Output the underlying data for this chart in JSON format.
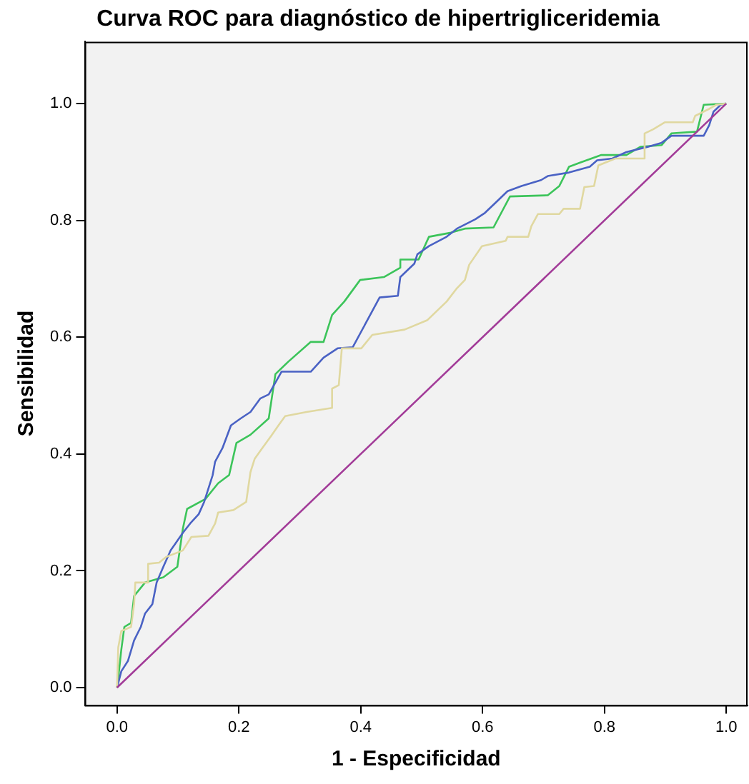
{
  "chart_data": {
    "type": "line",
    "title": "Curva ROC para diagnóstico de hipertrigliceridemia",
    "xlabel": "1 - Especificidad",
    "ylabel": "Sensibilidad",
    "xlim": [
      -0.053,
      1.035
    ],
    "ylim": [
      -0.03,
      1.106
    ],
    "xticks": [
      {
        "value": 0,
        "label": "0.0"
      },
      {
        "value": 0.2,
        "label": "0.2"
      },
      {
        "value": 0.4,
        "label": "0.4"
      },
      {
        "value": 0.6,
        "label": "0.6"
      },
      {
        "value": 0.8,
        "label": "0.8"
      },
      {
        "value": 1,
        "label": "1.0"
      }
    ],
    "yticks": [
      {
        "value": 0,
        "label": "0.0"
      },
      {
        "value": 0.2,
        "label": "0.2"
      },
      {
        "value": 0.4,
        "label": "0.4"
      },
      {
        "value": 0.6,
        "label": "0.6"
      },
      {
        "value": 0.8,
        "label": "0.8"
      },
      {
        "value": 1,
        "label": "1.0"
      }
    ],
    "grid": false,
    "legend": false,
    "marker": "none",
    "line_style": "solid",
    "series": [
      {
        "color": "#a23b98",
        "x": [
          0,
          1
        ],
        "values": [
          0,
          1
        ]
      },
      {
        "color": "#e0d8a0",
        "x": [
          0,
          0.002,
          0.007,
          0.023,
          0.028,
          0.03,
          0.051,
          0.051,
          0.069,
          0.081,
          0.108,
          0.122,
          0.15,
          0.161,
          0.166,
          0.191,
          0.212,
          0.219,
          0.226,
          0.237,
          0.253,
          0.265,
          0.276,
          0.311,
          0.353,
          0.353,
          0.364,
          0.369,
          0.401,
          0.419,
          0.472,
          0.509,
          0.53,
          0.541,
          0.558,
          0.571,
          0.578,
          0.599,
          0.638,
          0.641,
          0.675,
          0.68,
          0.691,
          0.726,
          0.733,
          0.76,
          0.767,
          0.783,
          0.79,
          0.818,
          0.864,
          0.866,
          0.88,
          0.899,
          0.945,
          0.949,
          0.972,
          0.984,
          1
        ],
        "values": [
          0,
          0.069,
          0.097,
          0.104,
          0.143,
          0.18,
          0.18,
          0.212,
          0.214,
          0.224,
          0.235,
          0.258,
          0.26,
          0.281,
          0.3,
          0.304,
          0.318,
          0.369,
          0.392,
          0.408,
          0.431,
          0.449,
          0.465,
          0.472,
          0.479,
          0.512,
          0.518,
          0.581,
          0.581,
          0.604,
          0.613,
          0.629,
          0.65,
          0.661,
          0.684,
          0.698,
          0.724,
          0.756,
          0.765,
          0.772,
          0.772,
          0.79,
          0.811,
          0.811,
          0.82,
          0.82,
          0.857,
          0.859,
          0.894,
          0.906,
          0.906,
          0.949,
          0.956,
          0.968,
          0.968,
          0.979,
          0.991,
          0.998,
          1
        ]
      },
      {
        "color": "#4a62c4",
        "x": [
          0,
          0.007,
          0.018,
          0.028,
          0.039,
          0.046,
          0.058,
          0.065,
          0.076,
          0.088,
          0.108,
          0.12,
          0.134,
          0.143,
          0.157,
          0.161,
          0.173,
          0.187,
          0.203,
          0.219,
          0.235,
          0.249,
          0.27,
          0.318,
          0.339,
          0.362,
          0.387,
          0.431,
          0.461,
          0.465,
          0.488,
          0.493,
          0.512,
          0.541,
          0.558,
          0.588,
          0.604,
          0.627,
          0.641,
          0.664,
          0.696,
          0.707,
          0.742,
          0.776,
          0.788,
          0.813,
          0.836,
          0.871,
          0.894,
          0.91,
          0.963,
          0.972,
          0.979,
          0.991,
          1
        ],
        "values": [
          0,
          0.028,
          0.046,
          0.081,
          0.104,
          0.127,
          0.143,
          0.18,
          0.207,
          0.235,
          0.265,
          0.281,
          0.297,
          0.318,
          0.364,
          0.387,
          0.41,
          0.449,
          0.461,
          0.472,
          0.495,
          0.502,
          0.541,
          0.541,
          0.565,
          0.581,
          0.583,
          0.668,
          0.671,
          0.703,
          0.726,
          0.742,
          0.756,
          0.772,
          0.786,
          0.802,
          0.813,
          0.836,
          0.85,
          0.859,
          0.869,
          0.876,
          0.882,
          0.892,
          0.903,
          0.906,
          0.917,
          0.926,
          0.933,
          0.945,
          0.945,
          0.963,
          0.986,
          0.998,
          1
        ]
      },
      {
        "color": "#3cc45a",
        "x": [
          0,
          0.002,
          0.007,
          0.012,
          0.023,
          0.028,
          0.046,
          0.076,
          0.099,
          0.108,
          0.115,
          0.145,
          0.166,
          0.184,
          0.196,
          0.219,
          0.249,
          0.26,
          0.281,
          0.318,
          0.339,
          0.353,
          0.373,
          0.399,
          0.438,
          0.465,
          0.465,
          0.495,
          0.512,
          0.548,
          0.571,
          0.618,
          0.645,
          0.707,
          0.726,
          0.742,
          0.76,
          0.795,
          0.836,
          0.859,
          0.894,
          0.91,
          0.952,
          0.963,
          1
        ],
        "values": [
          0,
          0.016,
          0.065,
          0.104,
          0.111,
          0.157,
          0.18,
          0.189,
          0.207,
          0.272,
          0.306,
          0.323,
          0.35,
          0.364,
          0.419,
          0.433,
          0.461,
          0.537,
          0.558,
          0.592,
          0.592,
          0.638,
          0.661,
          0.698,
          0.703,
          0.719,
          0.733,
          0.733,
          0.772,
          0.779,
          0.786,
          0.788,
          0.841,
          0.843,
          0.859,
          0.892,
          0.899,
          0.912,
          0.912,
          0.926,
          0.929,
          0.949,
          0.952,
          0.998,
          1
        ]
      }
    ]
  }
}
